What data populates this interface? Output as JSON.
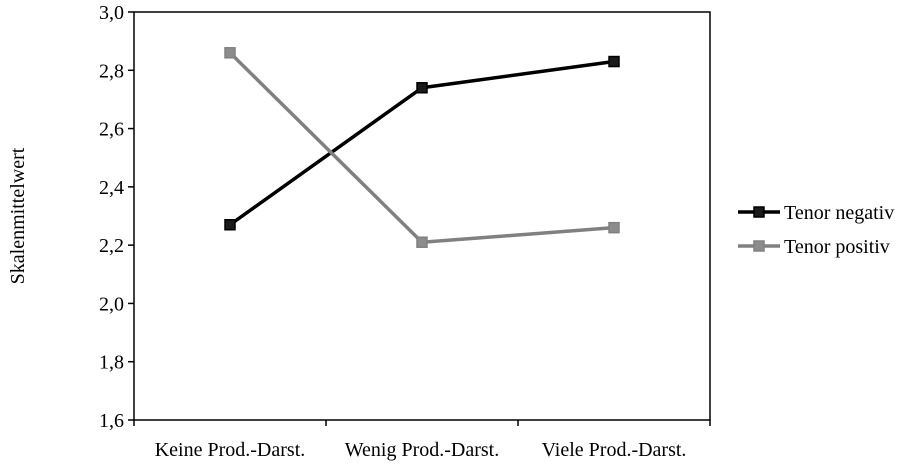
{
  "chart_data": {
    "type": "line",
    "title": "",
    "xlabel": "",
    "ylabel": "Skalenmittelwert",
    "categories": [
      "Keine Prod.-Darst.",
      "Wenig Prod.-Darst.",
      "Viele Prod.-Darst."
    ],
    "ylim": [
      1.6,
      3.0
    ],
    "yticks": [
      1.6,
      1.8,
      2.0,
      2.2,
      2.4,
      2.6,
      2.8,
      3.0
    ],
    "ytick_labels": [
      "1,6",
      "1,8",
      "2,0",
      "2,2",
      "2,4",
      "2,6",
      "2,8",
      "3,0"
    ],
    "grid": false,
    "legend_position": "right",
    "series": [
      {
        "name": "Tenor negativ",
        "values": [
          2.27,
          2.74,
          2.83
        ],
        "color": "#000000",
        "marker_color": "#1a1a1a"
      },
      {
        "name": "Tenor positiv",
        "values": [
          2.86,
          2.21,
          2.26
        ],
        "color": "#808080",
        "marker_color": "#8c8c8c"
      }
    ]
  }
}
